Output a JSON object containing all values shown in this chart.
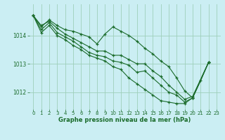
{
  "background_color": "#cbeef3",
  "grid_color": "#9ecfba",
  "line_color": "#1a6b2a",
  "xlabel": "Graphe pression niveau de la mer (hPa)",
  "ylim": [
    1011.4,
    1015.1
  ],
  "xlim": [
    -0.5,
    23.5
  ],
  "yticks": [
    1012,
    1013,
    1014
  ],
  "xticks": [
    0,
    1,
    2,
    3,
    4,
    5,
    6,
    7,
    8,
    9,
    10,
    11,
    12,
    13,
    14,
    15,
    16,
    17,
    18,
    19,
    20,
    21,
    22,
    23
  ],
  "series": [
    {
      "x": [
        0,
        1,
        2,
        3,
        4,
        5,
        6,
        7,
        8,
        9,
        10,
        11,
        12,
        13,
        14,
        15,
        16,
        17,
        18,
        19,
        20,
        22
      ],
      "y": [
        1014.7,
        1014.35,
        1014.5,
        1014.25,
        1014.05,
        1013.9,
        1013.75,
        1013.6,
        1013.45,
        1013.45,
        1013.3,
        1013.3,
        1013.15,
        1013.0,
        1013.0,
        1012.75,
        1012.55,
        1012.25,
        1012.0,
        1011.75,
        1011.85,
        1013.05
      ]
    },
    {
      "x": [
        0,
        1,
        2,
        3,
        4,
        5,
        6,
        7,
        8,
        9,
        10,
        11,
        12,
        13,
        14,
        15,
        16,
        17,
        18,
        19,
        20,
        21,
        22
      ],
      "y": [
        1014.7,
        1014.3,
        1014.55,
        1014.35,
        1014.2,
        1014.15,
        1014.05,
        1013.95,
        1013.7,
        1014.05,
        1014.3,
        1014.15,
        1014.0,
        1013.8,
        1013.55,
        1013.35,
        1013.1,
        1012.9,
        1012.5,
        1012.05,
        1011.8,
        1012.4,
        1013.05
      ]
    },
    {
      "x": [
        0,
        1,
        2,
        3,
        4,
        5,
        6,
        7,
        8,
        9,
        10,
        11,
        12,
        13,
        14,
        15,
        16,
        17,
        18,
        19,
        20,
        22
      ],
      "y": [
        1014.7,
        1014.2,
        1014.45,
        1014.1,
        1013.95,
        1013.8,
        1013.6,
        1013.4,
        1013.3,
        1013.25,
        1013.1,
        1013.05,
        1012.95,
        1012.7,
        1012.75,
        1012.5,
        1012.25,
        1012.0,
        1011.9,
        1011.65,
        1011.8,
        1013.05
      ]
    },
    {
      "x": [
        0,
        1,
        2,
        3,
        4,
        5,
        6,
        7,
        8,
        9,
        10,
        11,
        12,
        13,
        14,
        15,
        16,
        17,
        18,
        19,
        20,
        22
      ],
      "y": [
        1014.7,
        1014.1,
        1014.35,
        1014.0,
        1013.85,
        1013.65,
        1013.5,
        1013.3,
        1013.2,
        1013.1,
        1012.9,
        1012.8,
        1012.5,
        1012.3,
        1012.1,
        1011.9,
        1011.7,
        1011.65,
        1011.6,
        1011.6,
        1011.8,
        1013.05
      ]
    }
  ]
}
